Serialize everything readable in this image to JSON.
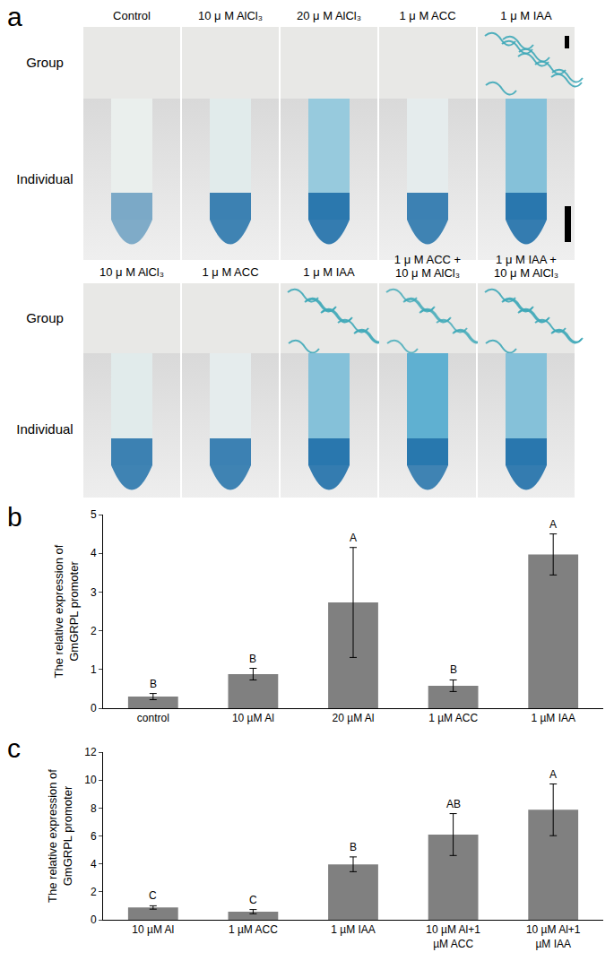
{
  "panel_labels": [
    "a",
    "b",
    "c"
  ],
  "panel_a": {
    "row_labels": [
      "Group",
      "Individual"
    ],
    "rows": [
      [
        "Control",
        "10 μ M AlCl₃",
        "20 μ M AlCl₃",
        "1 μ M ACC",
        "1 μ M IAA"
      ],
      [
        "10 μ M AlCl₃",
        "1 μ M ACC",
        "1 μ M IAA",
        "1 μ M ACC +\n10 μ M AlCl₃",
        "1 μ M IAA +\n10 μ M AlCl₃"
      ]
    ]
  },
  "chart_data": [
    {
      "type": "bar",
      "y_label": "The relative expression of\nGmGRPL promoter",
      "categories": [
        "control",
        "10 µM Al",
        "20 µM Al",
        "1 µM ACC",
        "1 µM IAA"
      ],
      "values": [
        0.3,
        0.88,
        2.73,
        0.58,
        3.97
      ],
      "errors": [
        0.08,
        0.15,
        1.42,
        0.15,
        0.53
      ],
      "annotations": [
        "B",
        "B",
        "A",
        "B",
        "A"
      ],
      "color": "#808080",
      "ylim": [
        0,
        5
      ],
      "yticks": [
        0,
        1,
        2,
        3,
        4,
        5
      ],
      "grid": false
    },
    {
      "type": "bar",
      "y_label": "The relative expression of\nGmGRPL promoter",
      "categories": [
        "10 µM Al",
        "1 µM ACC",
        "1 µM IAA",
        "10 µM Al+1\nµM ACC",
        "10 µM Al+1\nµM IAA"
      ],
      "values": [
        0.88,
        0.58,
        3.97,
        6.1,
        7.87
      ],
      "errors": [
        0.12,
        0.15,
        0.53,
        1.5,
        1.85
      ],
      "annotations": [
        "C",
        "C",
        "B",
        "AB",
        "A"
      ],
      "color": "#808080",
      "ylim": [
        0,
        12
      ],
      "yticks": [
        0,
        2,
        4,
        6,
        8,
        10,
        12
      ],
      "grid": false
    }
  ]
}
